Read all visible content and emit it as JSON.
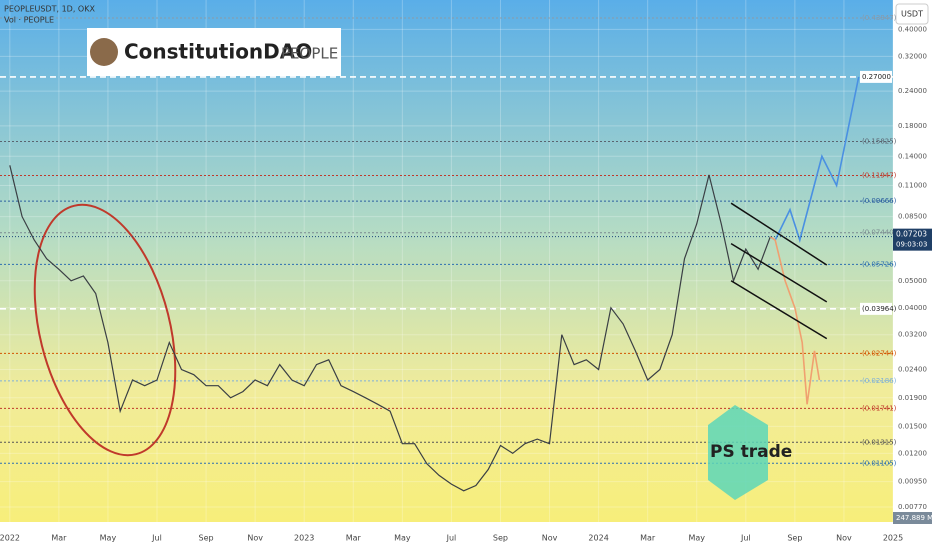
{
  "chart_data": {
    "type": "line",
    "title": "PEOPLEUSDT, 1D, OKX",
    "subtitle": "Vol · PEOPLE",
    "currency": "USDT",
    "logo_text": "ConstitutionDAO",
    "logo_sub": "PEOPLE",
    "watermark": "PS trade",
    "volume_label": "247.889 M",
    "log_scale": true,
    "grid": true,
    "xlim": [
      -0.4,
      36
    ],
    "ylim": [
      0.0068,
      0.51
    ],
    "xticks": [
      {
        "value": 0,
        "label": "2022"
      },
      {
        "value": 2,
        "label": "Mar"
      },
      {
        "value": 4,
        "label": "May"
      },
      {
        "value": 6,
        "label": "Jul"
      },
      {
        "value": 8,
        "label": "Sep"
      },
      {
        "value": 10,
        "label": "Nov"
      },
      {
        "value": 12,
        "label": "2023"
      },
      {
        "value": 14,
        "label": "Mar"
      },
      {
        "value": 16,
        "label": "May"
      },
      {
        "value": 18,
        "label": "Jul"
      },
      {
        "value": 20,
        "label": "Sep"
      },
      {
        "value": 22,
        "label": "Nov"
      },
      {
        "value": 24,
        "label": "2024"
      },
      {
        "value": 26,
        "label": "Mar"
      },
      {
        "value": 28,
        "label": "May"
      },
      {
        "value": 30,
        "label": "Jul"
      },
      {
        "value": 32,
        "label": "Sep"
      },
      {
        "value": 34,
        "label": "Nov"
      },
      {
        "value": 36,
        "label": "2025"
      }
    ],
    "yticks": [
      {
        "value": 0.4,
        "label": "0.40000"
      },
      {
        "value": 0.32,
        "label": "0.32000"
      },
      {
        "value": 0.24,
        "label": "0.24000"
      },
      {
        "value": 0.18,
        "label": "0.18000"
      },
      {
        "value": 0.14,
        "label": "0.14000"
      },
      {
        "value": 0.11,
        "label": "0.11000"
      },
      {
        "value": 0.085,
        "label": "0.08500"
      },
      {
        "value": 0.05,
        "label": "0.05000"
      },
      {
        "value": 0.04,
        "label": "0.04000"
      },
      {
        "value": 0.032,
        "label": "0.03200"
      },
      {
        "value": 0.024,
        "label": "0.02400"
      },
      {
        "value": 0.019,
        "label": "0.01900"
      },
      {
        "value": 0.015,
        "label": "0.01500"
      },
      {
        "value": 0.012,
        "label": "0.01200"
      },
      {
        "value": 0.0095,
        "label": "0.00950"
      },
      {
        "value": 0.0077,
        "label": "0.00770"
      }
    ],
    "levels": [
      {
        "value": 0.43947,
        "label": "(0.43947)",
        "color": "#8a9aa8"
      },
      {
        "value": 0.27,
        "label": "0.27000",
        "color": "#ffffff"
      },
      {
        "value": 0.15825,
        "label": "(0.15825)",
        "color": "#5a6470"
      },
      {
        "value": 0.11947,
        "label": "(0.11947)",
        "color": "#c0392b"
      },
      {
        "value": 0.09666,
        "label": "(0.09666)",
        "color": "#2c5fa0"
      },
      {
        "value": 0.0744,
        "label": "(0.07440)",
        "color": "#7a8a90"
      },
      {
        "value": 0.05726,
        "label": "(0.05726)",
        "color": "#2c6fb0"
      },
      {
        "value": 0.03964,
        "label": "(0.03964)",
        "color": "#ffffff"
      },
      {
        "value": 0.02744,
        "label": "(0.02744)",
        "color": "#d35400"
      },
      {
        "value": 0.02186,
        "label": "(0.02186)",
        "color": "#7fb0d8"
      },
      {
        "value": 0.01741,
        "label": "(0.01741)",
        "color": "#c0392b"
      },
      {
        "value": 0.01315,
        "label": "(0.01315)",
        "color": "#555555"
      },
      {
        "value": 0.01105,
        "label": "(0.01105)",
        "color": "#2c6fb0"
      }
    ],
    "last_price": {
      "value": 0.07203,
      "label": "0.07203",
      "countdown": "09:03:03"
    },
    "series": [
      {
        "color": "#3a3f44",
        "x": [
          0,
          0.5,
          1,
          1.5,
          2,
          2.5,
          3,
          3.5,
          4,
          4.5,
          5,
          5.5,
          6,
          6.5,
          7,
          7.5,
          8,
          8.5,
          9,
          9.5,
          10,
          10.5,
          11,
          11.5,
          12,
          12.5,
          13,
          13.5,
          14,
          14.5,
          15,
          15.5,
          16,
          16.5,
          17,
          17.5,
          18,
          18.5,
          19,
          19.5,
          20,
          20.5,
          21,
          21.5,
          22,
          22.5,
          23,
          23.5,
          24,
          24.5,
          25,
          25.5,
          26,
          26.5,
          27,
          27.5,
          28,
          28.5,
          29,
          29.5,
          30,
          30.5,
          31
        ],
        "values": [
          0.13,
          0.085,
          0.07,
          0.06,
          0.055,
          0.05,
          0.052,
          0.045,
          0.03,
          0.017,
          0.022,
          0.021,
          0.022,
          0.03,
          0.024,
          0.023,
          0.021,
          0.021,
          0.019,
          0.02,
          0.022,
          0.021,
          0.025,
          0.022,
          0.021,
          0.025,
          0.026,
          0.021,
          0.02,
          0.019,
          0.018,
          0.017,
          0.013,
          0.013,
          0.011,
          0.01,
          0.0093,
          0.0088,
          0.0092,
          0.0105,
          0.0128,
          0.012,
          0.013,
          0.0135,
          0.013,
          0.032,
          0.025,
          0.026,
          0.024,
          0.04,
          0.035,
          0.028,
          0.022,
          0.024,
          0.032,
          0.06,
          0.08,
          0.12,
          0.08,
          0.05,
          0.065,
          0.055,
          0.072
        ]
      },
      {
        "color": "#4a90e2",
        "x": [
          31,
          31.2,
          31.8,
          32.2,
          33.1,
          33.7,
          34.6
        ],
        "values": [
          0.072,
          0.07,
          0.09,
          0.07,
          0.14,
          0.11,
          0.27
        ]
      },
      {
        "color": "#f0a070",
        "x": [
          31,
          31.2,
          31.6,
          32,
          32.3,
          32.5,
          32.8,
          33
        ],
        "values": [
          0.072,
          0.07,
          0.05,
          0.04,
          0.03,
          0.018,
          0.028,
          0.022
        ]
      }
    ],
    "channel": [
      {
        "x": [
          29.4,
          33.3
        ],
        "values": [
          0.095,
          0.057
        ]
      },
      {
        "x": [
          29.4,
          33.3
        ],
        "values": [
          0.068,
          0.042
        ]
      },
      {
        "x": [
          29.4,
          33.3
        ],
        "values": [
          0.05,
          0.031
        ]
      }
    ]
  }
}
